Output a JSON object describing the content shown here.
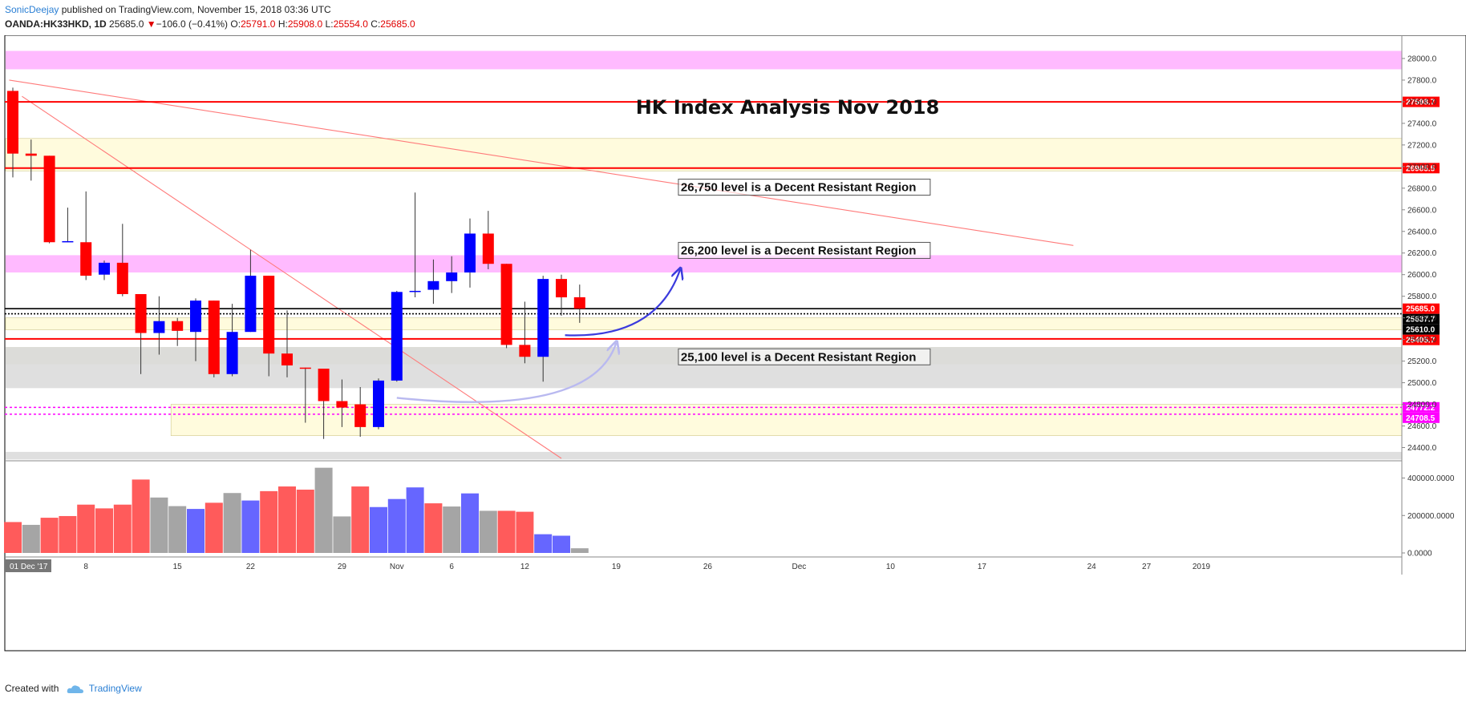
{
  "header": {
    "author": "SonicDeejay",
    "published": "published on TradingView.com, November 15, 2018 03:36 UTC",
    "symbol": "OANDA:HK33HKD, 1D",
    "last": "25685.0",
    "change": "−106.0 (−0.41%)",
    "open_label": "O:",
    "open": "25791.0",
    "high_label": "H:",
    "high": "25908.0",
    "low_label": "L:",
    "low": "25554.0",
    "close_label": "C:",
    "close": "25685.0"
  },
  "footer": {
    "created_with": "Created with",
    "brand": "TradingView"
  },
  "colors": {
    "up": "#0000ff",
    "down": "#ff0000",
    "vol_up": "#6666ff",
    "vol_down": "#ff5b5b",
    "vol_neutral": "#a5a5a5",
    "pink_zone": "#ffb3ff",
    "yellow_zone": "#fffbd9",
    "gray_zone": "#dcdcdc",
    "resistance_line": "#ff0000",
    "trendline": "#ff7a7a",
    "arrow": "#3b3bdd",
    "magenta_line": "#ff00ff"
  },
  "chart_data": {
    "type": "candlestick",
    "title": "HK Index Analysis Nov 2018",
    "ylim": [
      24300,
      28200
    ],
    "y_ticks": [
      24400,
      24600,
      24800,
      25000,
      25200,
      25400,
      25600,
      25800,
      26000,
      26200,
      26400,
      26600,
      26800,
      27000,
      27200,
      27400,
      27600,
      27800,
      28000
    ],
    "x_tick_labels": [
      {
        "day": 0,
        "label": "01 Dec '17",
        "boxed": true
      },
      {
        "day": 4,
        "label": "8"
      },
      {
        "day": 9,
        "label": "15"
      },
      {
        "day": 13,
        "label": "22"
      },
      {
        "day": 18,
        "label": "29"
      },
      {
        "day": 21,
        "label": "Nov"
      },
      {
        "day": 24,
        "label": "6"
      },
      {
        "day": 28,
        "label": "12"
      },
      {
        "day": 33,
        "label": "19"
      },
      {
        "day": 38,
        "label": "26"
      },
      {
        "day": 43,
        "label": "Dec"
      },
      {
        "day": 48,
        "label": "10"
      },
      {
        "day": 53,
        "label": "17"
      },
      {
        "day": 59,
        "label": "24"
      },
      {
        "day": 62,
        "label": "27"
      },
      {
        "day": 65,
        "label": "2019"
      }
    ],
    "candles": [
      {
        "o": 27700,
        "h": 27730,
        "l": 26900,
        "c": 27120
      },
      {
        "o": 27120,
        "h": 27250,
        "l": 26870,
        "c": 27100
      },
      {
        "o": 27100,
        "h": 27100,
        "l": 26290,
        "c": 26300
      },
      {
        "o": 26300,
        "h": 26620,
        "l": 26300,
        "c": 26310
      },
      {
        "o": 26300,
        "h": 26770,
        "l": 25950,
        "c": 25990
      },
      {
        "o": 26000,
        "h": 26130,
        "l": 25950,
        "c": 26110
      },
      {
        "o": 26110,
        "h": 26470,
        "l": 25800,
        "c": 25820
      },
      {
        "o": 25820,
        "h": 25820,
        "l": 25080,
        "c": 25460
      },
      {
        "o": 25460,
        "h": 25800,
        "l": 25260,
        "c": 25570
      },
      {
        "o": 25570,
        "h": 25600,
        "l": 25340,
        "c": 25480
      },
      {
        "o": 25470,
        "h": 25780,
        "l": 25200,
        "c": 25760
      },
      {
        "o": 25760,
        "h": 25760,
        "l": 25050,
        "c": 25080
      },
      {
        "o": 25080,
        "h": 25730,
        "l": 25060,
        "c": 25470
      },
      {
        "o": 25470,
        "h": 26230,
        "l": 25470,
        "c": 25990
      },
      {
        "o": 25990,
        "h": 25990,
        "l": 25060,
        "c": 25270
      },
      {
        "o": 25270,
        "h": 25670,
        "l": 25050,
        "c": 25160
      },
      {
        "o": 25140,
        "h": 25140,
        "l": 24630,
        "c": 25130
      },
      {
        "o": 25130,
        "h": 25100,
        "l": 24480,
        "c": 24830
      },
      {
        "o": 24830,
        "h": 25030,
        "l": 24590,
        "c": 24770
      },
      {
        "o": 24800,
        "h": 24960,
        "l": 24500,
        "c": 24590
      },
      {
        "o": 24590,
        "h": 25040,
        "l": 24570,
        "c": 25020
      },
      {
        "o": 25020,
        "h": 25850,
        "l": 25010,
        "c": 25840
      },
      {
        "o": 25840,
        "h": 26760,
        "l": 25790,
        "c": 25850
      },
      {
        "o": 25860,
        "h": 26140,
        "l": 25730,
        "c": 25940
      },
      {
        "o": 25940,
        "h": 26170,
        "l": 25830,
        "c": 26020
      },
      {
        "o": 26020,
        "h": 26520,
        "l": 25880,
        "c": 26380
      },
      {
        "o": 26380,
        "h": 26590,
        "l": 26050,
        "c": 26100
      },
      {
        "o": 26100,
        "h": 26100,
        "l": 25320,
        "c": 25350
      },
      {
        "o": 25350,
        "h": 25750,
        "l": 25180,
        "c": 25240
      },
      {
        "o": 25240,
        "h": 25990,
        "l": 25010,
        "c": 25960
      },
      {
        "o": 25960,
        "h": 26000,
        "l": 25620,
        "c": 25790
      },
      {
        "o": 25791,
        "h": 25908,
        "l": 25554,
        "c": 25685
      }
    ],
    "volume": {
      "ylim": [
        0,
        475000
      ],
      "y_ticks": [
        0,
        200000,
        400000
      ],
      "values": [
        165000,
        150000,
        188000,
        197000,
        258000,
        238000,
        258000,
        392000,
        296000,
        250000,
        235000,
        268000,
        320000,
        280000,
        330000,
        355000,
        338000,
        455000,
        195000,
        355000,
        245000,
        288000,
        350000,
        265000,
        248000,
        318000,
        225000,
        225000,
        220000,
        100000,
        92000,
        25000
      ],
      "colors": [
        "down",
        "neutral",
        "down",
        "down",
        "down",
        "down",
        "down",
        "down",
        "neutral",
        "neutral",
        "up",
        "down",
        "neutral",
        "up",
        "down",
        "down",
        "down",
        "neutral",
        "neutral",
        "down",
        "up",
        "up",
        "up",
        "down",
        "neutral",
        "up",
        "neutral",
        "down",
        "down",
        "up",
        "up",
        "neutral"
      ]
    },
    "zones": [
      {
        "kind": "pink",
        "from": 27900,
        "to": 28070
      },
      {
        "kind": "yellow",
        "from": 26960,
        "to": 27260
      },
      {
        "kind": "pink",
        "from": 26020,
        "to": 26180
      },
      {
        "kind": "yellow",
        "from": 25490,
        "to": 25600
      },
      {
        "kind": "olive",
        "from": 25170,
        "to": 25330
      },
      {
        "kind": "gray",
        "from": 24950,
        "to": 25330
      },
      {
        "kind": "yellow",
        "from": 24510,
        "to": 24800,
        "start_day": 9
      },
      {
        "kind": "gray",
        "from": 24290,
        "to": 24360
      }
    ],
    "horizontal_lines": [
      {
        "price": 27598.7,
        "style": "red",
        "label": "27598.7",
        "tag_color": "#ff0000"
      },
      {
        "price": 26985.5,
        "style": "red",
        "label": "26985.5",
        "tag_color": "#ff0000"
      },
      {
        "price": 25405.7,
        "style": "red",
        "label": "25405.7",
        "tag_color": "#ff0000"
      },
      {
        "price": 25637.7,
        "style": "dotted-black",
        "label": "25637.7",
        "tag_color": "#000000"
      },
      {
        "price": 25685.0,
        "style": "black",
        "label": "25685.0",
        "tag_color": "#ff0000"
      },
      {
        "price": 25610.0,
        "style": "none",
        "label": "25610.0",
        "tag_color": "#000000"
      },
      {
        "price": 24772.2,
        "style": "magenta",
        "label": "24772.2",
        "tag_color": "#ff00ff"
      },
      {
        "price": 24708.5,
        "style": "magenta",
        "label": "24708.5",
        "tag_color": "#ff00ff"
      }
    ],
    "trendlines": [
      {
        "d1": -0.2,
        "p1": 27800,
        "d2": 58,
        "p2": 26270
      },
      {
        "d1": 0.5,
        "p1": 27650,
        "d2": 30,
        "p2": 24300
      }
    ],
    "annotations": [
      {
        "text": "26,750 level is a Decent Resistant Region",
        "day": 36.4,
        "price": 26765
      },
      {
        "text": "26,200 level is a Decent Resistant Region",
        "day": 36.4,
        "price": 26180
      },
      {
        "text": "25,100 level is a Decent Resistant Region",
        "day": 36.4,
        "price": 25195
      }
    ],
    "arrows": [
      {
        "kind": "solid",
        "d1": 30.2,
        "p1": 25440,
        "d2": 36.5,
        "p2": 26050
      },
      {
        "kind": "faint",
        "d1": 21.0,
        "p1": 24860,
        "d2": 33.0,
        "p2": 25370
      }
    ]
  }
}
